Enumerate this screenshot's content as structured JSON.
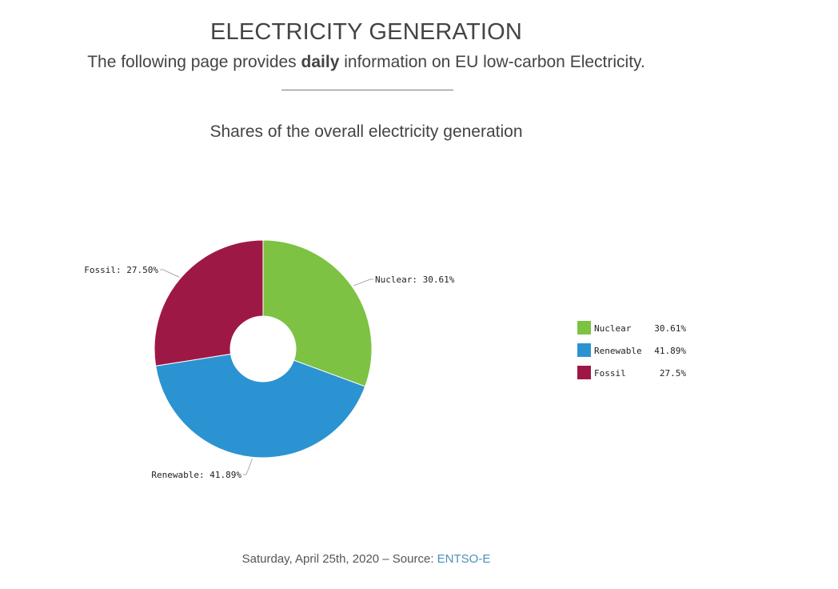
{
  "header": {
    "title": "ELECTRICITY GENERATION",
    "subtitle_prefix": "The following page provides ",
    "subtitle_bold": "daily",
    "subtitle_suffix": " information on EU low-carbon Electricity."
  },
  "chart_data": {
    "type": "pie",
    "title": "Shares of the overall electricity generation",
    "categories": [
      "Nuclear",
      "Renewable",
      "Fossil"
    ],
    "values": [
      30.61,
      41.89,
      27.5
    ],
    "slice_labels": [
      "Nuclear: 30.61%",
      "Renewable: 41.89%",
      "Fossil: 27.50%"
    ],
    "legend_values": [
      "30.61%",
      "41.89%",
      "27.5%"
    ],
    "colors": [
      "#7dc242",
      "#2b93d1",
      "#9e1846"
    ],
    "donut": true,
    "legend_position": "right"
  },
  "footer": {
    "date_text": "Saturday, April 25th, 2020  – Source: ",
    "source_link": "ENTSO-E"
  }
}
